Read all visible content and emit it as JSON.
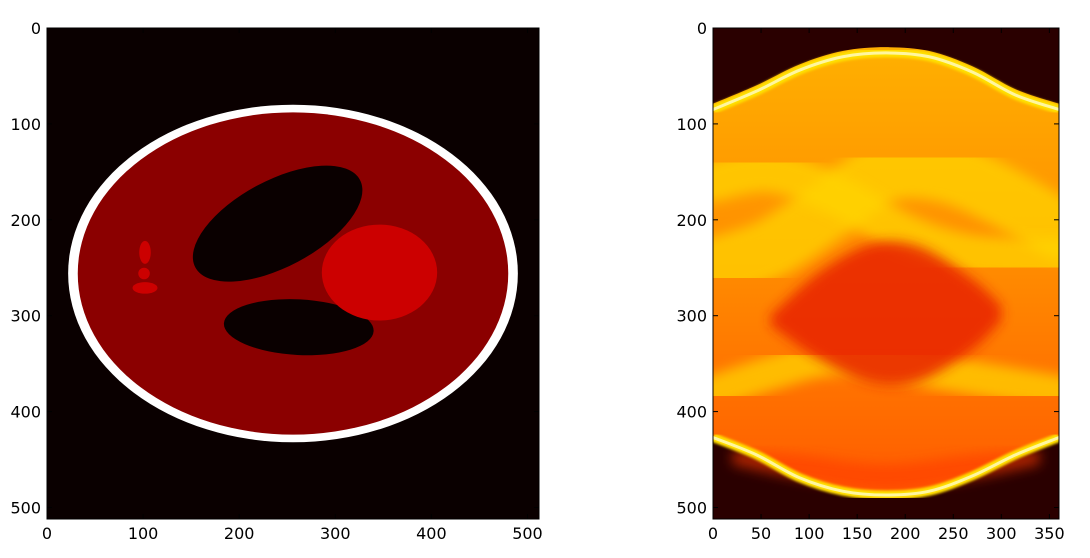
{
  "chart_data": [
    {
      "type": "heatmap",
      "title": "",
      "xlabel": "",
      "ylabel": "",
      "xlim": [
        0,
        512
      ],
      "ylim": [
        512,
        0
      ],
      "xticks": [
        0,
        100,
        200,
        300,
        400,
        500
      ],
      "yticks": [
        0,
        100,
        200,
        300,
        400,
        500
      ],
      "colormap": "hot",
      "background_color": "#0a0000",
      "ellipses": [
        {
          "label": "skull",
          "cx": 256,
          "cy": 256,
          "rx": 234,
          "ry": 176,
          "color": "#ffffff"
        },
        {
          "label": "brain",
          "cx": 256,
          "cy": 256,
          "rx": 224,
          "ry": 168,
          "color": "#8b0000"
        },
        {
          "label": "dark-ellipse-upper",
          "cx": 240,
          "cy": 204,
          "rx": 97,
          "ry": 45,
          "angle": -28,
          "color": "#0a0000"
        },
        {
          "label": "dark-ellipse-lower",
          "cx": 262,
          "cy": 312,
          "rx": 78,
          "ry": 29,
          "angle": 3,
          "color": "#0a0000"
        },
        {
          "label": "bright-circle",
          "cx": 346,
          "cy": 255,
          "rx": 60,
          "ry": 50,
          "color": "#cc0000"
        },
        {
          "label": "small-ellipse-top",
          "cx": 102,
          "cy": 234,
          "rx": 6,
          "ry": 12,
          "color": "#cc0000"
        },
        {
          "label": "small-ellipse-mid",
          "cx": 101,
          "cy": 256,
          "rx": 6,
          "ry": 6,
          "color": "#cc0000"
        },
        {
          "label": "small-ellipse-bottom",
          "cx": 102,
          "cy": 271,
          "rx": 13,
          "ry": 6,
          "color": "#cc0000"
        }
      ]
    },
    {
      "type": "heatmap",
      "title": "",
      "xlabel": "",
      "ylabel": "",
      "xlim": [
        0,
        360
      ],
      "ylim": [
        512,
        0
      ],
      "xticks": [
        0,
        50,
        100,
        150,
        200,
        250,
        300,
        350
      ],
      "yticks": [
        0,
        100,
        200,
        300,
        400,
        500
      ],
      "colormap": "hot",
      "background_color": "#2a0000",
      "sinogram": {
        "outer_top": [
          [
            0,
            79
          ],
          [
            45,
            60
          ],
          [
            90,
            38
          ],
          [
            135,
            24
          ],
          [
            180,
            20
          ],
          [
            225,
            24
          ],
          [
            270,
            40
          ],
          [
            315,
            64
          ],
          [
            360,
            79
          ]
        ],
        "outer_bottom": [
          [
            0,
            430
          ],
          [
            45,
            448
          ],
          [
            90,
            472
          ],
          [
            135,
            486
          ],
          [
            180,
            490
          ],
          [
            225,
            486
          ],
          [
            270,
            470
          ],
          [
            315,
            448
          ],
          [
            360,
            430
          ]
        ],
        "inner_red_top": [
          [
            60,
            300
          ],
          [
            110,
            255
          ],
          [
            165,
            225
          ],
          [
            215,
            228
          ],
          [
            270,
            262
          ],
          [
            300,
            290
          ]
        ],
        "inner_red_bottom": [
          [
            60,
            310
          ],
          [
            110,
            345
          ],
          [
            165,
            370
          ],
          [
            215,
            368
          ],
          [
            270,
            335
          ],
          [
            300,
            305
          ]
        ],
        "body_color": "#ff9a00",
        "bright_edge_color": "#fff6a0",
        "core_color": "#e82000"
      }
    }
  ]
}
